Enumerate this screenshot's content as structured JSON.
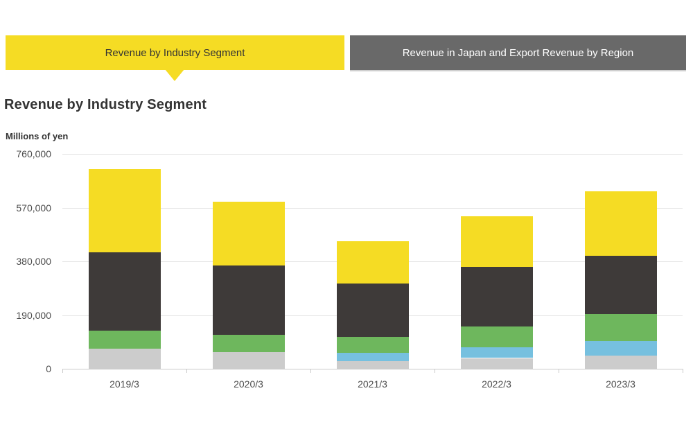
{
  "tabs": {
    "active_tab_label": "Revenue by Industry Segment",
    "inactive_tab_label": "Revenue in Japan and Export Revenue by Region",
    "active_tab_color": "#f5dc24",
    "inactive_tab_color": "#696969"
  },
  "header": {
    "title": "Revenue by Industry Segment"
  },
  "chart_data": {
    "type": "bar",
    "stacked": true,
    "title": "Revenue by Industry Segment",
    "unit_label": "Millions of yen",
    "categories": [
      "2019/3",
      "2020/3",
      "2021/3",
      "2022/3",
      "2023/3"
    ],
    "series_bottom_to_top": [
      {
        "name": "segment-light-gray",
        "color": "#cccccc",
        "values": [
          70000,
          59000,
          26000,
          38000,
          46000
        ]
      },
      {
        "name": "segment-light-blue",
        "color": "#76c0df",
        "values": [
          0,
          0,
          30000,
          39000,
          52000
        ]
      },
      {
        "name": "segment-green",
        "color": "#6eb75d",
        "values": [
          66000,
          60000,
          56000,
          72000,
          96000
        ]
      },
      {
        "name": "segment-dark-gray",
        "color": "#3e3a39",
        "values": [
          275000,
          246000,
          190000,
          212000,
          206000
        ]
      },
      {
        "name": "segment-yellow",
        "color": "#f5dc24",
        "values": [
          296000,
          226000,
          149000,
          178000,
          228000
        ]
      }
    ],
    "totals": [
      707000,
      591000,
      451000,
      539000,
      628000
    ],
    "ylim": [
      0,
      760000
    ],
    "yticks": [
      0,
      190000,
      380000,
      570000,
      760000
    ],
    "ytick_labels": [
      "0",
      "190,000",
      "380,000",
      "570,000",
      "760,000"
    ],
    "grid": true,
    "legend": "none",
    "axis_label_color": "#4d4d4d",
    "gridline_color": "#e4e4e4"
  }
}
